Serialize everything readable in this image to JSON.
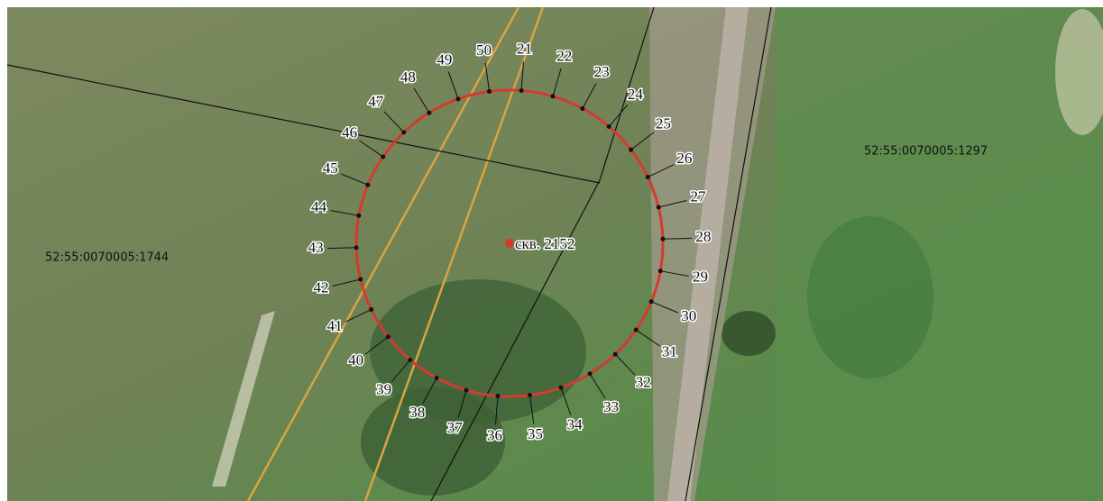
{
  "parcels": [
    {
      "label": "52:55:0070005:1744"
    },
    {
      "label": "52:55:0070005:1297"
    }
  ],
  "well": {
    "label": "скв. 2152"
  },
  "points": [
    "21",
    "22",
    "23",
    "24",
    "25",
    "26",
    "27",
    "28",
    "29",
    "30",
    "31",
    "32",
    "33",
    "34",
    "35",
    "36",
    "37",
    "38",
    "39",
    "40",
    "41",
    "42",
    "43",
    "44",
    "45",
    "46",
    "47",
    "48",
    "49",
    "50"
  ]
}
